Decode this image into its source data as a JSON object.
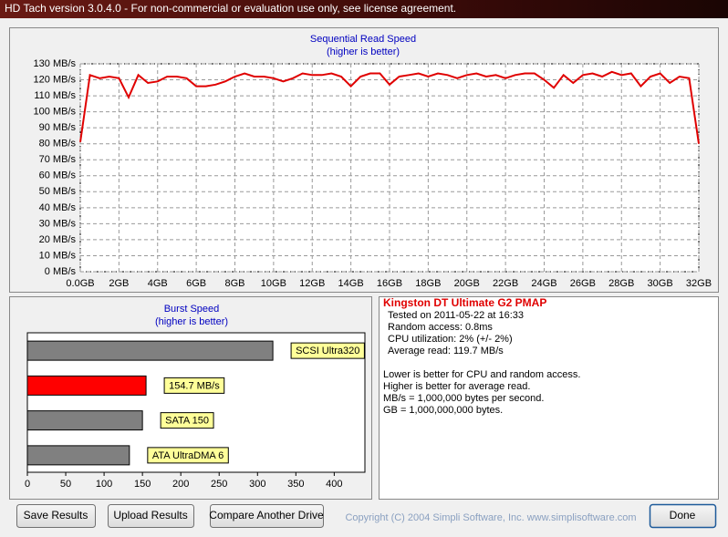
{
  "window_title": "HD Tach version 3.0.4.0  - For non-commercial or evaluation use only, see license agreement.",
  "chart_data": [
    {
      "type": "line",
      "title": "Sequential Read Speed",
      "subtitle": "(higher is better)",
      "x": [
        0,
        0.5,
        1,
        1.5,
        2,
        2.5,
        3,
        3.5,
        4,
        4.5,
        5,
        5.5,
        6,
        6.5,
        7,
        7.5,
        8,
        8.5,
        9,
        9.5,
        10,
        10.5,
        11,
        11.5,
        12,
        12.5,
        13,
        13.5,
        14,
        14.5,
        15,
        15.5,
        16,
        16.5,
        17,
        17.5,
        18,
        18.5,
        19,
        19.5,
        20,
        20.5,
        21,
        21.5,
        22,
        22.5,
        23,
        23.5,
        24,
        24.5,
        25,
        25.5,
        26,
        26.5,
        27,
        27.5,
        28,
        28.5,
        29,
        29.5,
        30,
        30.5,
        31,
        31.5,
        32
      ],
      "series": [
        {
          "color": "#e00000",
          "values": [
            81,
            123,
            121,
            122,
            121,
            109,
            123,
            118,
            119,
            122,
            122,
            121,
            116,
            116,
            117,
            119,
            122,
            124,
            122,
            122,
            121,
            119,
            121,
            124,
            123,
            123,
            124,
            122,
            116,
            122,
            124,
            124,
            117,
            122,
            123,
            124,
            122,
            124,
            123,
            121,
            123,
            124,
            122,
            123,
            121,
            123,
            124,
            124,
            120,
            115,
            123,
            118,
            123,
            124,
            122,
            125,
            123,
            124,
            116,
            122,
            124,
            118,
            122,
            121,
            80
          ]
        }
      ],
      "xlim": [
        0,
        32
      ],
      "xticks": [
        {
          "value": 0,
          "label": "0.0GB"
        },
        {
          "value": 2,
          "label": "2GB"
        },
        {
          "value": 4,
          "label": "4GB"
        },
        {
          "value": 6,
          "label": "6GB"
        },
        {
          "value": 8,
          "label": "8GB"
        },
        {
          "value": 10,
          "label": "10GB"
        },
        {
          "value": 12,
          "label": "12GB"
        },
        {
          "value": 14,
          "label": "14GB"
        },
        {
          "value": 16,
          "label": "16GB"
        },
        {
          "value": 18,
          "label": "18GB"
        },
        {
          "value": 20,
          "label": "20GB"
        },
        {
          "value": 22,
          "label": "22GB"
        },
        {
          "value": 24,
          "label": "24GB"
        },
        {
          "value": 26,
          "label": "26GB"
        },
        {
          "value": 28,
          "label": "28GB"
        },
        {
          "value": 30,
          "label": "30GB"
        },
        {
          "value": 32,
          "label": "32GB"
        }
      ],
      "ylim": [
        0,
        130
      ],
      "yticks": [
        {
          "value": 0,
          "label": "0 MB/s"
        },
        {
          "value": 10,
          "label": "10 MB/s"
        },
        {
          "value": 20,
          "label": "20 MB/s"
        },
        {
          "value": 30,
          "label": "30 MB/s"
        },
        {
          "value": 40,
          "label": "40 MB/s"
        },
        {
          "value": 50,
          "label": "50 MB/s"
        },
        {
          "value": 60,
          "label": "60 MB/s"
        },
        {
          "value": 70,
          "label": "70 MB/s"
        },
        {
          "value": 80,
          "label": "80 MB/s"
        },
        {
          "value": 90,
          "label": "90 MB/s"
        },
        {
          "value": 100,
          "label": "100 MB/s"
        },
        {
          "value": 110,
          "label": "110 MB/s"
        },
        {
          "value": 120,
          "label": "120 MB/s"
        },
        {
          "value": 130,
          "label": "130 MB/s"
        }
      ],
      "grid": true
    },
    {
      "type": "bar",
      "orientation": "horizontal",
      "title": "Burst Speed",
      "subtitle": "(higher is better)",
      "categories": [
        "SCSI Ultra320",
        null,
        "SATA 150",
        "ATA UltraDMA 6"
      ],
      "values": [
        320,
        154.7,
        150,
        133
      ],
      "value_labels": [
        null,
        "154.7 MB/s",
        null,
        null
      ],
      "colors": [
        "#808080",
        "#ff0000",
        "#808080",
        "#808080"
      ],
      "xlim": [
        0,
        440
      ],
      "xticks": [
        0,
        50,
        100,
        150,
        200,
        250,
        300,
        350,
        400
      ]
    }
  ],
  "info": {
    "drive": "Kingston DT Ultimate G2 PMAP",
    "details": [
      "Tested on 2011-05-22 at 16:33",
      "Random access: 0.8ms",
      "CPU utilization: 2% (+/- 2%)",
      "Average read: 119.7 MB/s"
    ],
    "notes": [
      "Lower is better for CPU and random access.",
      "Higher is better for average read.",
      "MB/s = 1,000,000 bytes per second.",
      "GB = 1,000,000,000 bytes."
    ]
  },
  "buttons": [
    "Save Results",
    "Upload Results",
    "Compare Another Drive",
    "Done"
  ],
  "copyright": "Copyright (C) 2004 Simpli Software, Inc. www.simplisoftware.com"
}
